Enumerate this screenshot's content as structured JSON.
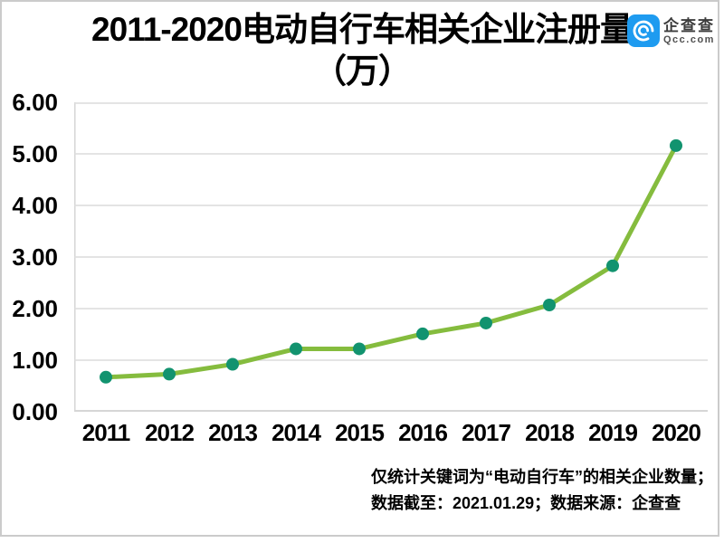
{
  "title": {
    "line1": "2011-2020电动自行车相关企业注册量",
    "line2": "（万）"
  },
  "logo": {
    "name": "企查查",
    "domain": "Qcc.com",
    "square_color": "#1E9BF0"
  },
  "footer": {
    "line1": "仅统计关键词为“电动自行车”的相关企业数量；",
    "line2": "数据截至：2021.01.29；数据来源：企查查"
  },
  "chart_data": {
    "type": "line",
    "title": "2011-2020电动自行车相关企业注册量（万）",
    "categories": [
      "2011",
      "2012",
      "2013",
      "2014",
      "2015",
      "2016",
      "2017",
      "2018",
      "2019",
      "2020"
    ],
    "values": [
      0.67,
      0.73,
      0.92,
      1.22,
      1.22,
      1.51,
      1.72,
      2.07,
      2.83,
      5.16
    ],
    "xlabel": "",
    "ylabel": "",
    "ylim": [
      0,
      6
    ],
    "ytick_step": 1,
    "ytick_labels": [
      "0.00",
      "1.00",
      "2.00",
      "3.00",
      "4.00",
      "5.00",
      "6.00"
    ],
    "grid": true,
    "legend": "none",
    "line_color": "#85BC3E",
    "marker_color": "#12936F",
    "grid_color": "#dcdcdc",
    "axis_color": "#d6d6d6"
  }
}
